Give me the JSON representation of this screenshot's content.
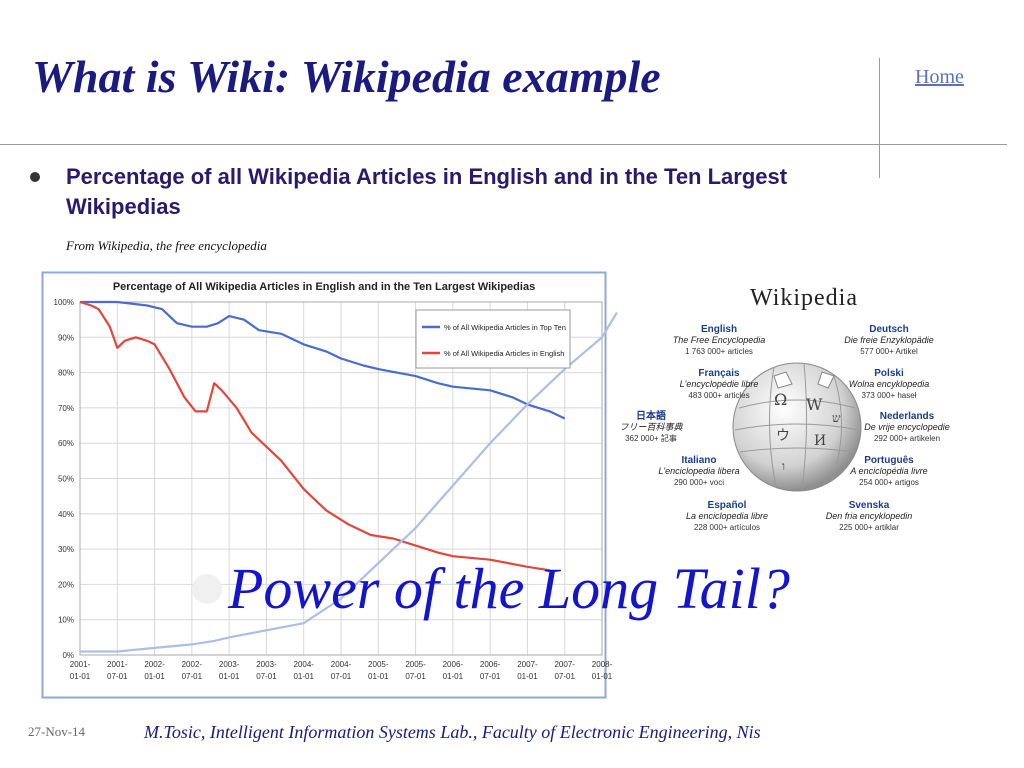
{
  "slide": {
    "title": "What is Wiki: Wikipedia example",
    "home_link": "Home",
    "bullet": "Percentage of all Wikipedia Articles in English and in the Ten Largest Wikipedias",
    "source": "From Wikipedia, the free encyclopedia",
    "tail_text": "Power of  the Long Tail?",
    "date": "27-Nov-14",
    "footer": "M.Tosic, Intelligent Information Systems Lab., Faculty of Electronic Engineering, Nis"
  },
  "wikipedia_logo": {
    "name": "Wikipedia",
    "languages": [
      {
        "name": "English",
        "slogan": "The Free Encyclopedia",
        "count": "1 763 000+ articles"
      },
      {
        "name": "Deutsch",
        "slogan": "Die freie Enzyklopädie",
        "count": "577 000+ Artikel"
      },
      {
        "name": "Français",
        "slogan": "L'encyclopédie libre",
        "count": "483 000+ articles"
      },
      {
        "name": "Polski",
        "slogan": "Wolna encyklopedia",
        "count": "373 000+ haseł"
      },
      {
        "name": "日本語",
        "slogan": "フリー百科事典",
        "count": "362 000+ 記事"
      },
      {
        "name": "Nederlands",
        "slogan": "De vrije encyclopedie",
        "count": "292 000+ artikelen"
      },
      {
        "name": "Italiano",
        "slogan": "L'enciclopedia libera",
        "count": "290 000+ voci"
      },
      {
        "name": "Português",
        "slogan": "A enciclopédia livre",
        "count": "254 000+ artigos"
      },
      {
        "name": "Español",
        "slogan": "La enciclopedia libre",
        "count": "228 000+ artículos"
      },
      {
        "name": "Svenska",
        "slogan": "Den fria encyklopedin",
        "count": "225 000+ artiklar"
      }
    ]
  },
  "chart_data": {
    "type": "line",
    "title": "Percentage of All Wikipedia Articles in English and in the Ten Largest Wikipedias",
    "xlabel": "",
    "ylabel": "",
    "x_ticks": [
      "2001-01-01",
      "2001-07-01",
      "2002-01-01",
      "2002-07-01",
      "2003-01-01",
      "2003-07-01",
      "2004-01-01",
      "2004-07-01",
      "2005-01-01",
      "2005-07-01",
      "2006-01-01",
      "2006-07-01",
      "2007-01-01",
      "2007-07-01",
      "2008-01-01"
    ],
    "y_ticks": [
      "0%",
      "10%",
      "20%",
      "30%",
      "40%",
      "50%",
      "60%",
      "70%",
      "80%",
      "90%",
      "100%"
    ],
    "ylim": [
      0,
      100
    ],
    "grid": true,
    "legend_position": "top-right",
    "series": [
      {
        "name": "% of All Wikipedia Articles in Top Ten",
        "color": "#4a6ccf",
        "points": [
          [
            2001.0,
            100
          ],
          [
            2001.5,
            100
          ],
          [
            2001.9,
            99
          ],
          [
            2002.1,
            98
          ],
          [
            2002.3,
            94
          ],
          [
            2002.5,
            93
          ],
          [
            2002.7,
            93
          ],
          [
            2002.85,
            94
          ],
          [
            2003.0,
            96
          ],
          [
            2003.2,
            95
          ],
          [
            2003.4,
            92
          ],
          [
            2003.7,
            91
          ],
          [
            2004.0,
            88
          ],
          [
            2004.3,
            86
          ],
          [
            2004.5,
            84
          ],
          [
            2004.8,
            82
          ],
          [
            2005.0,
            81
          ],
          [
            2005.5,
            79
          ],
          [
            2005.8,
            77
          ],
          [
            2006.0,
            76
          ],
          [
            2006.5,
            75
          ],
          [
            2006.8,
            73
          ],
          [
            2007.0,
            71
          ],
          [
            2007.3,
            69
          ],
          [
            2007.5,
            67
          ]
        ]
      },
      {
        "name": "% of All Wikipedia Articles in English",
        "color": "#e2463e",
        "points": [
          [
            2001.0,
            100
          ],
          [
            2001.15,
            99
          ],
          [
            2001.25,
            98
          ],
          [
            2001.4,
            93
          ],
          [
            2001.5,
            87
          ],
          [
            2001.6,
            89
          ],
          [
            2001.75,
            90
          ],
          [
            2001.9,
            89
          ],
          [
            2002.0,
            88
          ],
          [
            2002.2,
            81
          ],
          [
            2002.4,
            73
          ],
          [
            2002.55,
            69
          ],
          [
            2002.7,
            69
          ],
          [
            2002.8,
            77
          ],
          [
            2002.9,
            75
          ],
          [
            2003.1,
            70
          ],
          [
            2003.3,
            63
          ],
          [
            2003.5,
            59
          ],
          [
            2003.7,
            55
          ],
          [
            2004.0,
            47
          ],
          [
            2004.3,
            41
          ],
          [
            2004.6,
            37
          ],
          [
            2004.9,
            34
          ],
          [
            2005.2,
            33
          ],
          [
            2005.5,
            31
          ],
          [
            2005.8,
            29
          ],
          [
            2006.0,
            28
          ],
          [
            2006.5,
            27
          ],
          [
            2007.0,
            25
          ],
          [
            2007.3,
            24
          ]
        ]
      },
      {
        "name": "",
        "color": "#aebde8",
        "points": [
          [
            2001.0,
            1
          ],
          [
            2001.5,
            1
          ],
          [
            2002.0,
            2
          ],
          [
            2002.5,
            3
          ],
          [
            2002.8,
            4
          ],
          [
            2003.0,
            5
          ],
          [
            2003.5,
            7
          ],
          [
            2004.0,
            9
          ],
          [
            2004.5,
            16
          ],
          [
            2005.0,
            26
          ],
          [
            2005.5,
            36
          ],
          [
            2006.0,
            48
          ],
          [
            2006.5,
            60
          ],
          [
            2007.0,
            71
          ],
          [
            2007.5,
            81
          ],
          [
            2008.0,
            90
          ],
          [
            2008.2,
            97
          ]
        ]
      }
    ]
  }
}
